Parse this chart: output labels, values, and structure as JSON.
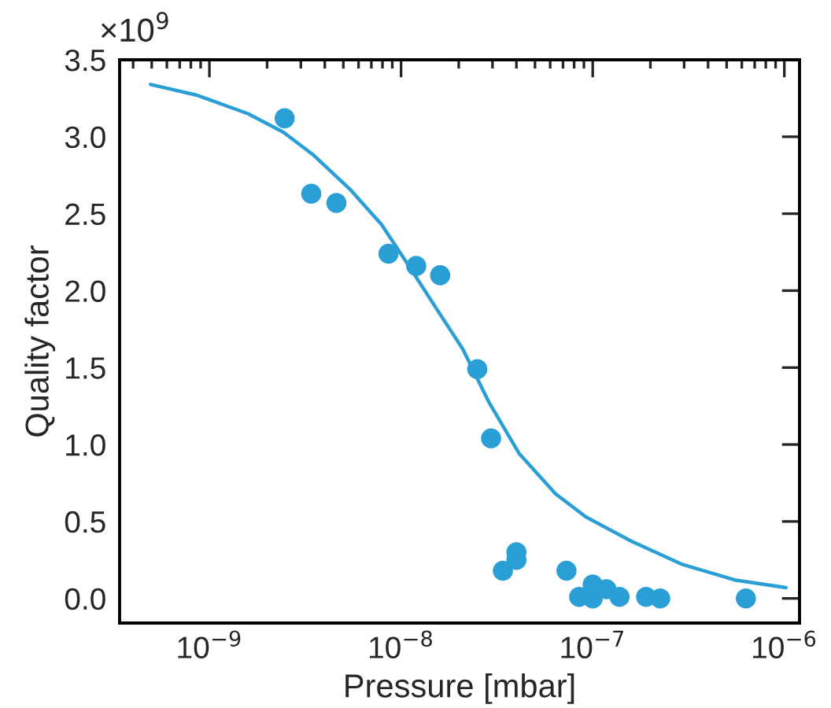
{
  "chart_data": {
    "type": "scatter",
    "xlabel": "Pressure [mbar]",
    "ylabel": "Quality factor",
    "log": "x",
    "grid": false,
    "legend": false,
    "xlim": [
      3.4e-10,
      1.2e-06
    ],
    "xticks": [
      {
        "value": 1e-09,
        "label": "10$^{−9}$"
      },
      {
        "value": 1e-08,
        "label": "10$^{−8}$"
      },
      {
        "value": 1e-07,
        "label": "10$^{−7}$"
      },
      {
        "value": 1e-06,
        "label": "10$^{−6}$"
      }
    ],
    "ylim": [
      -0.16,
      3.5
    ],
    "yticks": [
      {
        "value": 0,
        "label": "0.0"
      },
      {
        "value": 0.5,
        "label": "0.5"
      },
      {
        "value": 1,
        "label": "1.0"
      },
      {
        "value": 1.5,
        "label": "1.5"
      },
      {
        "value": 2,
        "label": "2.0"
      },
      {
        "value": 2.5,
        "label": "2.5"
      },
      {
        "value": 3,
        "label": "3.0"
      },
      {
        "value": 3.5,
        "label": "3.5"
      }
    ],
    "annotations": [
      "×10$^{9}$"
    ],
    "series": [
      {
        "marker": "circle",
        "color": "#2a9fd6",
        "x": [
          2.47e-09,
          3.4e-09,
          4.6e-09,
          8.6e-09,
          1.2e-08,
          1.6e-08,
          2.5e-08,
          2.95e-08,
          3.4e-08,
          4e-08,
          4e-08,
          7.3e-08,
          8.5e-08,
          1e-07,
          1e-07,
          1.18e-07,
          1.38e-07,
          1.9e-07,
          2.25e-07,
          6.3e-07
        ],
        "values": [
          3.12,
          2.63,
          2.57,
          2.24,
          2.16,
          2.1,
          1.49,
          1.04,
          0.18,
          0.3,
          0.25,
          0.18,
          0.01,
          0.09,
          0.0,
          0.06,
          0.01,
          0.01,
          0.0,
          0.0
        ]
      },
      {
        "type": "line",
        "marker": "none",
        "line_style": "solid",
        "color": "#2a9fd6",
        "x": [
          4.93e-10,
          8.6e-10,
          1.59e-09,
          2.43e-09,
          3.5e-09,
          5.4e-09,
          7.9e-09,
          1.06e-08,
          1.65e-08,
          2.1e-08,
          2.86e-08,
          4.14e-08,
          6.4e-08,
          9.2e-08,
          1.6e-07,
          2.95e-07,
          5.5e-07,
          1.02e-06
        ],
        "values": [
          3.34,
          3.27,
          3.15,
          3.03,
          2.88,
          2.66,
          2.43,
          2.19,
          1.82,
          1.62,
          1.28,
          0.94,
          0.68,
          0.53,
          0.37,
          0.22,
          0.12,
          0.07
        ]
      }
    ]
  }
}
